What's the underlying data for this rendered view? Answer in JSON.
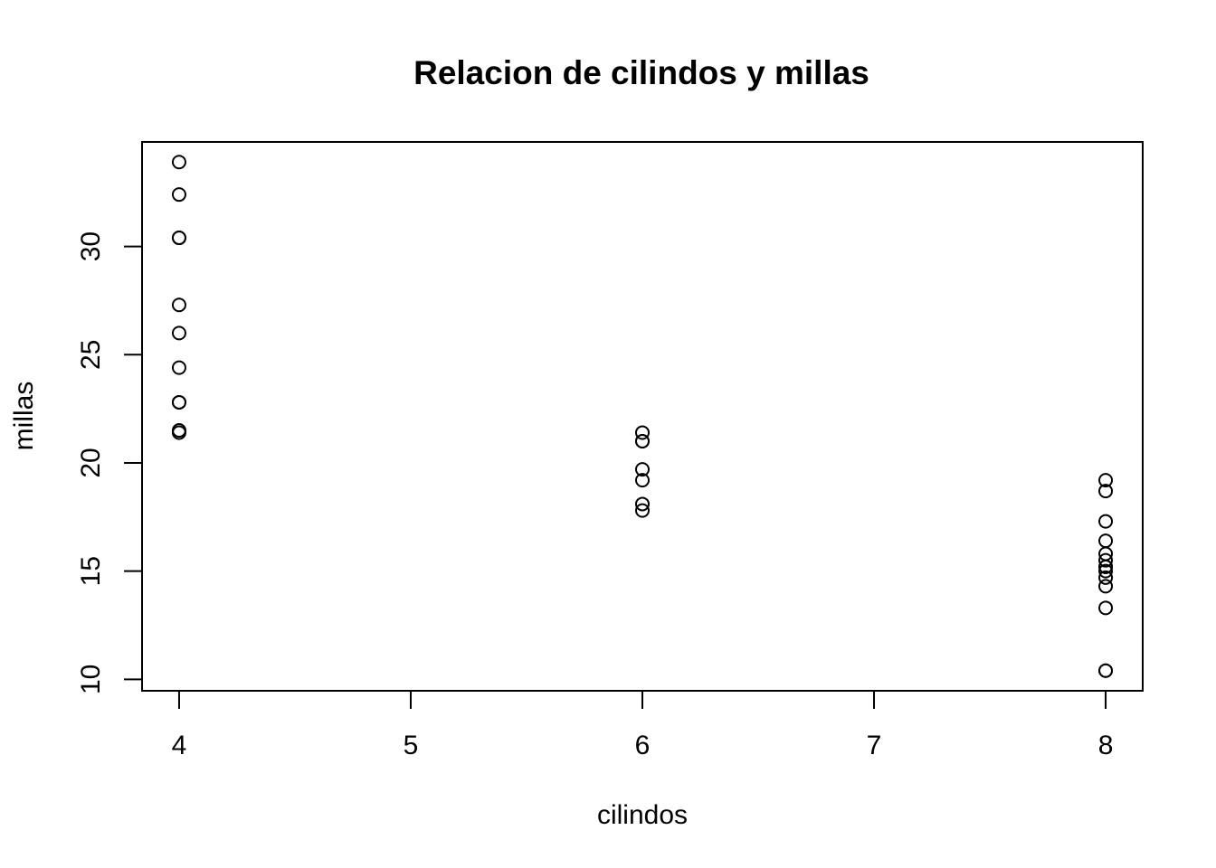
{
  "chart_data": {
    "type": "scatter",
    "title": "Relacion de cilindos y millas",
    "xlabel": "cilindos",
    "ylabel": "millas",
    "xlim": [
      3.84,
      8.16
    ],
    "ylim": [
      9.47,
      34.83
    ],
    "xticks": [
      4,
      5,
      6,
      7,
      8
    ],
    "yticks": [
      10,
      15,
      20,
      25,
      30
    ],
    "grid": false,
    "legend": "none",
    "marker": "open-circle",
    "series": [
      {
        "x": [
          4,
          4,
          4,
          4,
          4,
          4,
          4,
          4,
          4,
          4,
          4,
          6,
          6,
          6,
          6,
          6,
          6,
          6,
          8,
          8,
          8,
          8,
          8,
          8,
          8,
          8,
          8,
          8,
          8,
          8,
          8,
          8
        ],
        "y": [
          22.8,
          24.4,
          22.8,
          32.4,
          30.4,
          33.9,
          21.5,
          27.3,
          26.0,
          30.4,
          21.4,
          21.0,
          21.0,
          21.4,
          18.1,
          19.2,
          17.8,
          19.7,
          18.7,
          14.3,
          16.4,
          17.3,
          15.2,
          10.4,
          10.4,
          14.7,
          15.5,
          15.2,
          13.3,
          19.2,
          15.8,
          15.0
        ]
      }
    ]
  }
}
